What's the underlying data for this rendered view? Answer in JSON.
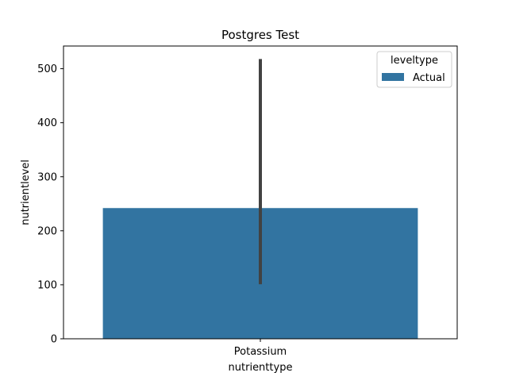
{
  "chart_data": {
    "type": "bar",
    "title": "Postgres Test",
    "xlabel": "nutrienttype",
    "ylabel": "nutrientlevel",
    "categories": [
      "Potassium"
    ],
    "series": [
      {
        "name": "Actual",
        "values": [
          242
        ],
        "error_low": [
          101
        ],
        "error_high": [
          518
        ]
      }
    ],
    "ylim": [
      0,
      542
    ],
    "yticks": [
      0,
      100,
      200,
      300,
      400,
      500
    ],
    "grid": false,
    "legend": {
      "title": "leveltype",
      "placement": "top-right"
    },
    "colors": {
      "bar": "#3274a1",
      "errorbar": "#424242",
      "axis": "#000000"
    }
  }
}
